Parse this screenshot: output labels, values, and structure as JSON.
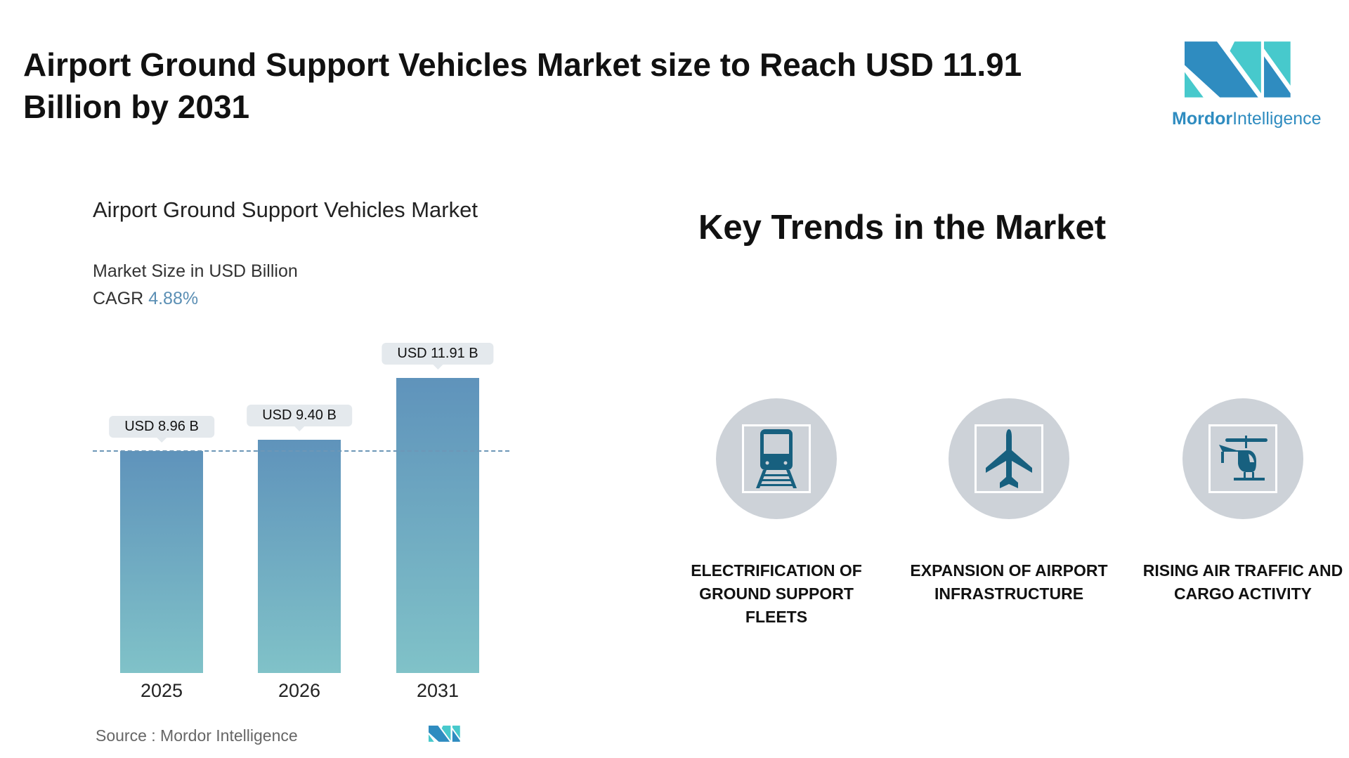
{
  "header": {
    "title": "Airport Ground Support Vehicles Market size to Reach USD 11.91 Billion by 2031",
    "logo_text_bold": "Mordor",
    "logo_text_light": "Intelligence"
  },
  "chart_data": {
    "type": "bar",
    "title": "Airport Ground Support Vehicles Market",
    "subtitle": "Market Size in USD Billion",
    "cagr_label": "CAGR",
    "cagr_value": "4.88%",
    "categories": [
      "2025",
      "2026",
      "2031"
    ],
    "values": [
      8.96,
      9.4,
      11.91
    ],
    "data_labels": [
      "USD 8.96 B",
      "USD 9.40 B",
      "USD 11.91 B"
    ],
    "reference_line": 8.96,
    "colors": {
      "bar_top": "#5f93bb",
      "bar_bottom": "#80c2c8",
      "label_bg": "#e4e9ed"
    }
  },
  "source": "Source :  Mordor Intelligence",
  "trends": {
    "title": "Key Trends in the Market",
    "items": [
      {
        "icon": "train-icon",
        "label": "ELECTRIFICATION OF GROUND SUPPORT FLEETS"
      },
      {
        "icon": "airplane-icon",
        "label": "EXPANSION OF AIRPORT INFRASTRUCTURE"
      },
      {
        "icon": "helicopter-icon",
        "label": "RISING AIR TRAFFIC AND CARGO ACTIVITY"
      }
    ],
    "icon_color": "#17607f"
  }
}
